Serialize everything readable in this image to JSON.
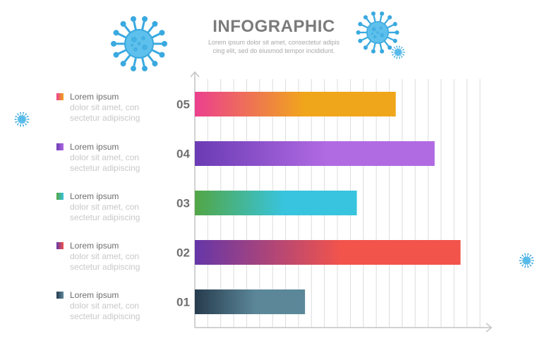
{
  "header": {
    "title": "INFOGRAPHIC",
    "subtitle_lines": [
      "Lorem ipsum dolor sit amet, consectetur adipis",
      "cing elit, sed do eiusmod tempor incididunt."
    ]
  },
  "legend": [
    {
      "title": "Lorem ipsum",
      "desc1": "dolor sit amet, con",
      "desc2": "sectetur adipiscing",
      "grad_start": "#ec3f8f",
      "grad_end": "#f0a61a"
    },
    {
      "title": "Lorem ipsum",
      "desc1": "dolor sit amet, con",
      "desc2": "sectetur adipiscing",
      "grad_start": "#6a3bb4",
      "grad_end": "#b06ae2"
    },
    {
      "title": "Lorem ipsum",
      "desc1": "dolor sit amet, con",
      "desc2": "sectetur adipiscing",
      "grad_start": "#52a645",
      "grad_end": "#38c4de"
    },
    {
      "title": "Lorem ipsum",
      "desc1": "dolor sit amet, con",
      "desc2": "sectetur adipiscing",
      "grad_start": "#6536a8",
      "grad_end": "#f2544c"
    },
    {
      "title": "Lorem ipsum",
      "desc1": "dolor sit amet, con",
      "desc2": "sectetur adipiscing",
      "grad_start": "#263c4e",
      "grad_end": "#5b8799"
    }
  ],
  "chart_data": {
    "type": "bar",
    "orientation": "horizontal",
    "categories": [
      "05",
      "04",
      "03",
      "02",
      "01"
    ],
    "values": [
      15.5,
      18.5,
      12.5,
      20.5,
      8.5
    ],
    "xlim": [
      0,
      22
    ],
    "grid": "vertical",
    "colors": [
      [
        "#ec3f8f",
        "#f0a61a"
      ],
      [
        "#6a3bb4",
        "#b06ae2"
      ],
      [
        "#52a645",
        "#38c4de"
      ],
      [
        "#6536a8",
        "#f2544c"
      ],
      [
        "#263c4e",
        "#5b8799"
      ]
    ]
  },
  "decor": {
    "virus_color": "#3aa9e0",
    "virus_core": "#5ec0ec"
  }
}
